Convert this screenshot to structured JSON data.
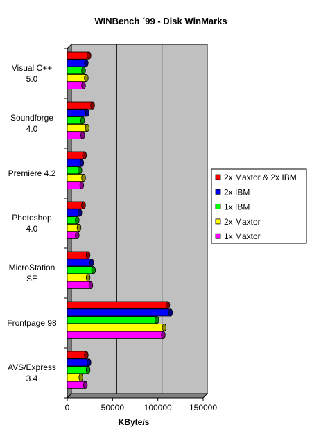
{
  "chart_data": {
    "type": "bar",
    "orientation": "horizontal",
    "style": "3d-cylinder",
    "title": "WINBench ´99 - Disk WinMarks",
    "xlabel": "KByte/s",
    "ylabel": "",
    "xlim": [
      0,
      150000
    ],
    "xticks": [
      "0",
      "50000",
      "100000",
      "150000"
    ],
    "grid": true,
    "legend_position": "right",
    "categories": [
      [
        "Visual C++",
        "5.0"
      ],
      [
        "Soundforge",
        "4.0"
      ],
      [
        "Premiere 4.2"
      ],
      [
        "Photoshop",
        "4.0"
      ],
      [
        "MicroStation",
        "SE"
      ],
      [
        "Frontpage 98"
      ],
      [
        "AVS/Express",
        "3.4"
      ]
    ],
    "series": [
      {
        "name": "2x Maxtor & 2x IBM",
        "color": "#ff0000",
        "values": [
          24000,
          28000,
          19000,
          18000,
          23000,
          111000,
          21000
        ]
      },
      {
        "name": "2x IBM",
        "color": "#0000ff",
        "values": [
          21000,
          22000,
          16000,
          14000,
          27000,
          114000,
          24000
        ]
      },
      {
        "name": "1x IBM",
        "color": "#00ff00",
        "values": [
          18000,
          17000,
          14000,
          11000,
          29000,
          99000,
          23000
        ]
      },
      {
        "name": "2x Maxtor",
        "color": "#ffff00",
        "values": [
          21000,
          22000,
          18000,
          13000,
          23000,
          107000,
          15000
        ]
      },
      {
        "name": "1x Maxtor",
        "color": "#ff00ff",
        "values": [
          18000,
          17000,
          16000,
          11000,
          26000,
          106000,
          20000
        ]
      }
    ]
  },
  "colors": {
    "plot_background": "#c0c0c0",
    "wall_shadow": "#808080",
    "gridline": "#000000"
  }
}
